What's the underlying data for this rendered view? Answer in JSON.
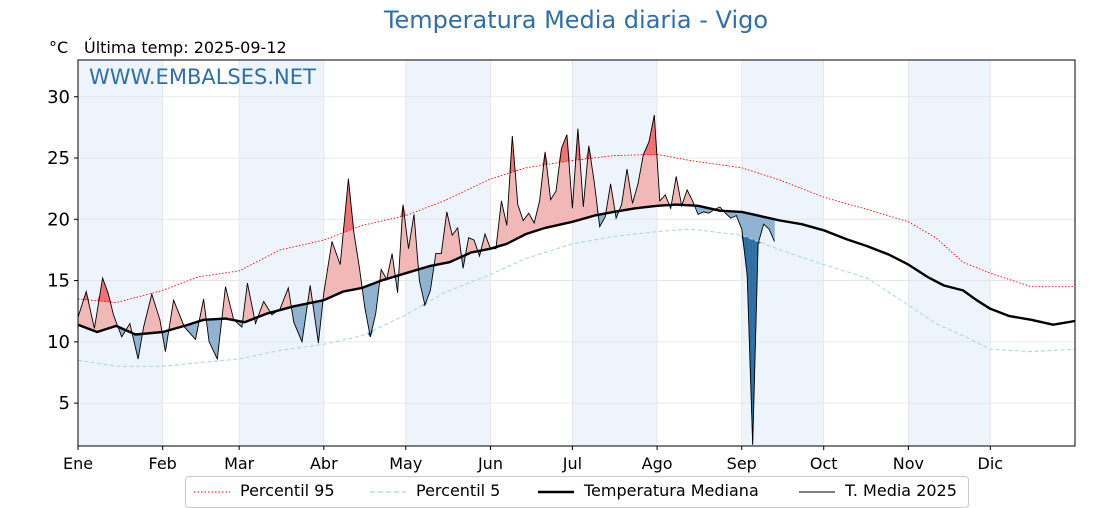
{
  "page": {
    "title": "Temperatura Media diaria - Vigo",
    "unit": "°C",
    "last_temp": "Última temp: 2025-09-12",
    "watermark": "WWW.EMBALSES.NET"
  },
  "colors": {
    "p95": "#ff0000",
    "p5": "#add8e6",
    "median": "#000000",
    "current": "#000000",
    "above": "#f2b8b8",
    "above_extreme": "#f07070",
    "below": "#8fb3d0",
    "below_extreme": "#2c6fa5",
    "month_band": "#eef4fb",
    "title": "#2f6fa8"
  },
  "chart_data": {
    "type": "line",
    "title": "Temperatura Media diaria - Vigo",
    "ylabel": "°C",
    "xlabel": "",
    "ylim": [
      1.5,
      33
    ],
    "xlim": [
      1,
      366
    ],
    "yticks": [
      5,
      10,
      15,
      20,
      25,
      30
    ],
    "grid": true,
    "legend_position": "bottom",
    "months": [
      {
        "label": "Ene",
        "day": 1
      },
      {
        "label": "Feb",
        "day": 32
      },
      {
        "label": "Mar",
        "day": 60
      },
      {
        "label": "Abr",
        "day": 91
      },
      {
        "label": "May",
        "day": 121
      },
      {
        "label": "Jun",
        "day": 152
      },
      {
        "label": "Jul",
        "day": 182
      },
      {
        "label": "Ago",
        "day": 213
      },
      {
        "label": "Sep",
        "day": 244
      },
      {
        "label": "Oct",
        "day": 274
      },
      {
        "label": "Nov",
        "day": 305
      },
      {
        "label": "Dic",
        "day": 335
      }
    ],
    "shaded_months": [
      "Ene",
      "Mar",
      "May",
      "Jul",
      "Sep",
      "Nov"
    ],
    "series": [
      {
        "name": "Percentil 95",
        "style": "dotted",
        "points": [
          [
            1,
            13.5
          ],
          [
            15,
            13.2
          ],
          [
            32,
            14.2
          ],
          [
            45,
            15.3
          ],
          [
            60,
            15.8
          ],
          [
            75,
            17.5
          ],
          [
            91,
            18.3
          ],
          [
            105,
            19.5
          ],
          [
            121,
            20.3
          ],
          [
            135,
            21.5
          ],
          [
            152,
            23.3
          ],
          [
            165,
            24.2
          ],
          [
            182,
            24.8
          ],
          [
            197,
            25.2
          ],
          [
            213,
            25.3
          ],
          [
            225,
            24.8
          ],
          [
            244,
            24.2
          ],
          [
            258,
            23.2
          ],
          [
            274,
            21.8
          ],
          [
            290,
            20.8
          ],
          [
            305,
            19.8
          ],
          [
            315,
            18.5
          ],
          [
            325,
            16.5
          ],
          [
            335,
            15.6
          ],
          [
            350,
            14.5
          ],
          [
            366,
            14.5
          ]
        ]
      },
      {
        "name": "Percentil 5",
        "style": "dashed",
        "points": [
          [
            1,
            8.5
          ],
          [
            15,
            8.0
          ],
          [
            32,
            8.0
          ],
          [
            45,
            8.3
          ],
          [
            60,
            8.6
          ],
          [
            75,
            9.3
          ],
          [
            91,
            9.8
          ],
          [
            105,
            10.5
          ],
          [
            121,
            12.2
          ],
          [
            135,
            14.0
          ],
          [
            152,
            15.5
          ],
          [
            165,
            16.8
          ],
          [
            182,
            18.0
          ],
          [
            197,
            18.6
          ],
          [
            213,
            19.0
          ],
          [
            225,
            19.2
          ],
          [
            244,
            18.7
          ],
          [
            258,
            17.5
          ],
          [
            274,
            16.3
          ],
          [
            290,
            15.2
          ],
          [
            305,
            13.0
          ],
          [
            315,
            11.5
          ],
          [
            325,
            10.5
          ],
          [
            335,
            9.4
          ],
          [
            350,
            9.2
          ],
          [
            366,
            9.4
          ]
        ]
      },
      {
        "name": "Temperatura Mediana",
        "style": "solid-thick",
        "points": [
          [
            1,
            11.4
          ],
          [
            8,
            10.8
          ],
          [
            15,
            11.3
          ],
          [
            22,
            10.6
          ],
          [
            32,
            10.8
          ],
          [
            40,
            11.3
          ],
          [
            47,
            11.8
          ],
          [
            55,
            11.9
          ],
          [
            62,
            11.6
          ],
          [
            70,
            12.3
          ],
          [
            80,
            12.9
          ],
          [
            91,
            13.4
          ],
          [
            98,
            14.1
          ],
          [
            105,
            14.4
          ],
          [
            112,
            15.0
          ],
          [
            121,
            15.6
          ],
          [
            130,
            16.2
          ],
          [
            137,
            16.5
          ],
          [
            145,
            17.3
          ],
          [
            152,
            17.6
          ],
          [
            158,
            18.0
          ],
          [
            165,
            18.8
          ],
          [
            172,
            19.3
          ],
          [
            182,
            19.8
          ],
          [
            190,
            20.3
          ],
          [
            197,
            20.6
          ],
          [
            205,
            20.9
          ],
          [
            213,
            21.1
          ],
          [
            220,
            21.2
          ],
          [
            228,
            21.1
          ],
          [
            236,
            20.7
          ],
          [
            244,
            20.6
          ],
          [
            250,
            20.3
          ],
          [
            258,
            19.9
          ],
          [
            266,
            19.6
          ],
          [
            274,
            19.1
          ],
          [
            282,
            18.4
          ],
          [
            290,
            17.8
          ],
          [
            298,
            17.1
          ],
          [
            305,
            16.3
          ],
          [
            312,
            15.3
          ],
          [
            318,
            14.6
          ],
          [
            325,
            14.2
          ],
          [
            330,
            13.4
          ],
          [
            335,
            12.7
          ],
          [
            342,
            12.1
          ],
          [
            350,
            11.8
          ],
          [
            358,
            11.4
          ],
          [
            366,
            11.7
          ]
        ]
      },
      {
        "name": "T. Media 2025",
        "style": "solid-thin",
        "points": [
          [
            1,
            12.0
          ],
          [
            4,
            14.1
          ],
          [
            7,
            11.1
          ],
          [
            10,
            15.2
          ],
          [
            12,
            14.0
          ],
          [
            14,
            12.2
          ],
          [
            17,
            10.4
          ],
          [
            20,
            11.5
          ],
          [
            23,
            8.6
          ],
          [
            25,
            11.2
          ],
          [
            28,
            13.9
          ],
          [
            31,
            11.8
          ],
          [
            33,
            9.2
          ],
          [
            36,
            13.4
          ],
          [
            40,
            11.2
          ],
          [
            44,
            10.2
          ],
          [
            47,
            13.5
          ],
          [
            49,
            10.0
          ],
          [
            52,
            8.6
          ],
          [
            55,
            14.5
          ],
          [
            58,
            11.8
          ],
          [
            61,
            11.2
          ],
          [
            63,
            14.8
          ],
          [
            66,
            11.5
          ],
          [
            69,
            13.3
          ],
          [
            72,
            12.2
          ],
          [
            75,
            12.7
          ],
          [
            78,
            14.4
          ],
          [
            80,
            11.6
          ],
          [
            83,
            10.0
          ],
          [
            86,
            14.6
          ],
          [
            89,
            9.9
          ],
          [
            91,
            14.0
          ],
          [
            94,
            18.2
          ],
          [
            97,
            16.3
          ],
          [
            100,
            23.3
          ],
          [
            102,
            18.9
          ],
          [
            104,
            16.1
          ],
          [
            106,
            12.8
          ],
          [
            108,
            10.4
          ],
          [
            110,
            12.3
          ],
          [
            112,
            15.9
          ],
          [
            114,
            15.1
          ],
          [
            116,
            17.2
          ],
          [
            118,
            14.0
          ],
          [
            120,
            21.2
          ],
          [
            122,
            17.6
          ],
          [
            124,
            20.4
          ],
          [
            126,
            15.0
          ],
          [
            128,
            13.0
          ],
          [
            130,
            14.2
          ],
          [
            132,
            17.2
          ],
          [
            134,
            17.2
          ],
          [
            136,
            20.6
          ],
          [
            138,
            18.7
          ],
          [
            140,
            19.3
          ],
          [
            142,
            16.0
          ],
          [
            144,
            18.5
          ],
          [
            146,
            18.3
          ],
          [
            148,
            17.0
          ],
          [
            150,
            18.8
          ],
          [
            152,
            17.6
          ],
          [
            154,
            17.6
          ],
          [
            156,
            21.5
          ],
          [
            158,
            19.5
          ],
          [
            160,
            26.8
          ],
          [
            162,
            21.2
          ],
          [
            164,
            19.9
          ],
          [
            166,
            20.5
          ],
          [
            168,
            19.7
          ],
          [
            170,
            21.5
          ],
          [
            172,
            25.5
          ],
          [
            174,
            21.6
          ],
          [
            176,
            22.3
          ],
          [
            178,
            25.8
          ],
          [
            180,
            26.9
          ],
          [
            182,
            20.9
          ],
          [
            184,
            27.4
          ],
          [
            186,
            21.0
          ],
          [
            188,
            26.0
          ],
          [
            190,
            23.0
          ],
          [
            192,
            19.4
          ],
          [
            194,
            20.2
          ],
          [
            196,
            22.9
          ],
          [
            198,
            20.1
          ],
          [
            200,
            21.2
          ],
          [
            202,
            24.1
          ],
          [
            204,
            21.3
          ],
          [
            206,
            22.9
          ],
          [
            208,
            25.3
          ],
          [
            210,
            26.3
          ],
          [
            212,
            28.5
          ],
          [
            214,
            21.5
          ],
          [
            216,
            22.0
          ],
          [
            218,
            20.9
          ],
          [
            220,
            23.5
          ],
          [
            222,
            21.1
          ],
          [
            224,
            22.4
          ],
          [
            226,
            21.5
          ],
          [
            228,
            20.4
          ],
          [
            230,
            20.6
          ],
          [
            232,
            20.5
          ],
          [
            234,
            20.8
          ],
          [
            236,
            21.0
          ],
          [
            238,
            20.5
          ],
          [
            240,
            20.1
          ],
          [
            242,
            20.3
          ],
          [
            244,
            19.2
          ],
          [
            246,
            15.4
          ],
          [
            248,
            1.6
          ],
          [
            250,
            18.0
          ],
          [
            252,
            19.6
          ],
          [
            254,
            19.2
          ],
          [
            256,
            18.2
          ]
        ]
      }
    ]
  },
  "legend": [
    {
      "label": "Percentil 95",
      "color": "#ff0000",
      "style": "dotted"
    },
    {
      "label": "Percentil 5",
      "color": "#add8e6",
      "style": "dashed"
    },
    {
      "label": "Temperatura Mediana",
      "color": "#000000",
      "style": "solid-thick"
    },
    {
      "label": "T. Media 2025",
      "color": "#000000",
      "style": "solid-thin"
    }
  ]
}
